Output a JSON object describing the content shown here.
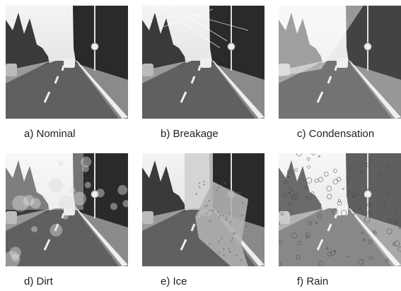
{
  "panels": [
    {
      "caption": "a) Nominal"
    },
    {
      "caption": "b) Breakage"
    },
    {
      "caption": "c) Condensation"
    },
    {
      "caption": "d) Dirt"
    },
    {
      "caption": "e) Ice"
    },
    {
      "caption": "f) Rain"
    }
  ]
}
